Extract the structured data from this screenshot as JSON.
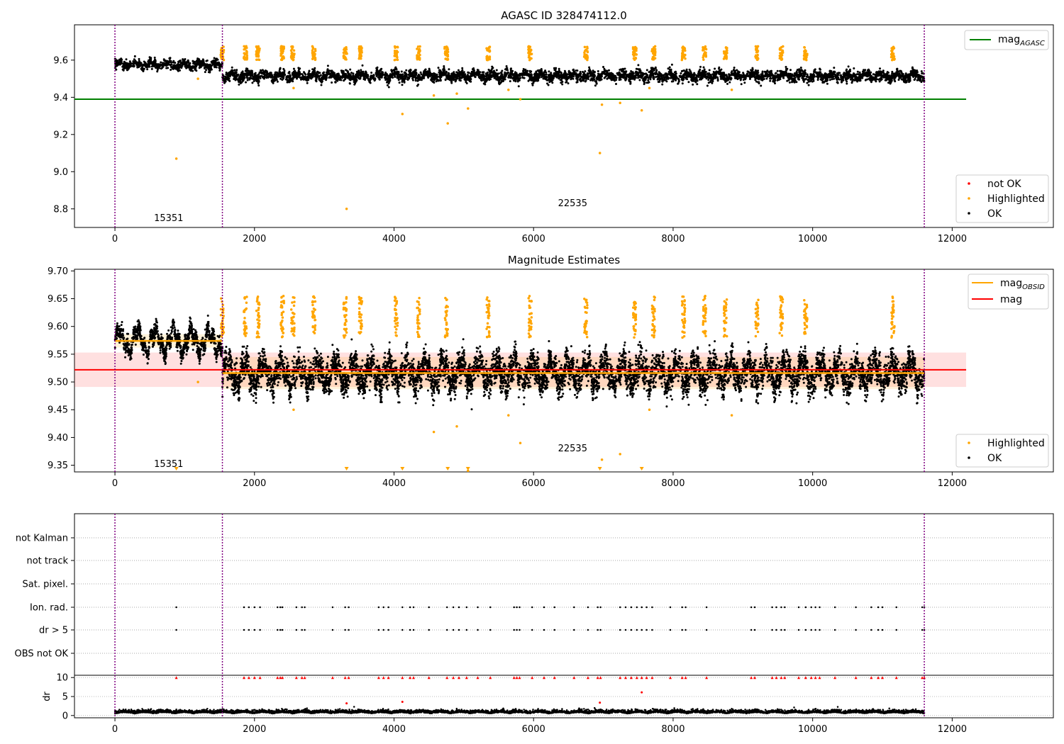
{
  "chart_data": [
    {
      "type": "scatter",
      "title": "AGASC ID 328474112.0",
      "xlim": [
        -580,
        13450
      ],
      "ylim": [
        8.7,
        9.79
      ],
      "x_ticks": [
        "0",
        "2000",
        "4000",
        "6000",
        "8000",
        "10000",
        "12000"
      ],
      "x_tick_values": [
        0,
        2000,
        4000,
        6000,
        8000,
        10000,
        12000
      ],
      "y_ticks": [
        "8.8",
        "9.0",
        "9.2",
        "9.4",
        "9.6"
      ],
      "y_tick_values": [
        8.8,
        9.0,
        9.2,
        9.4,
        9.6
      ],
      "reference_line": {
        "name": "mag_AGASC",
        "value": 9.39,
        "x_range": [
          -580,
          12200
        ],
        "color": "#008000"
      },
      "obsid_boundaries": [
        0,
        1540,
        11600
      ],
      "obsid_labels": [
        {
          "text": "15351",
          "x": 770,
          "y": 8.75
        },
        {
          "text": "22535",
          "x": 6560,
          "y": 8.83
        }
      ],
      "segments": [
        {
          "x_range": [
            0,
            1540
          ],
          "level": 9.575,
          "spread": 0.025
        },
        {
          "x_range": [
            1540,
            11600
          ],
          "level": 9.515,
          "spread": 0.03
        }
      ],
      "highlighted_clusters": [
        1540,
        1870,
        2050,
        2400,
        2550,
        2850,
        3300,
        3520,
        4030,
        4350,
        4750,
        5350,
        5950,
        6750,
        7450,
        7720,
        8150,
        8450,
        8750,
        9200,
        9550,
        9900,
        11150
      ],
      "highlighted_outliers": [
        {
          "x": 880,
          "y": 9.07
        },
        {
          "x": 1190,
          "y": 9.5
        },
        {
          "x": 2560,
          "y": 9.45
        },
        {
          "x": 3320,
          "y": 8.8
        },
        {
          "x": 4120,
          "y": 9.31
        },
        {
          "x": 4570,
          "y": 9.41
        },
        {
          "x": 4770,
          "y": 9.26
        },
        {
          "x": 4900,
          "y": 9.42
        },
        {
          "x": 5060,
          "y": 9.34
        },
        {
          "x": 5640,
          "y": 9.44
        },
        {
          "x": 5810,
          "y": 9.39
        },
        {
          "x": 6950,
          "y": 9.1
        },
        {
          "x": 6980,
          "y": 9.36
        },
        {
          "x": 7240,
          "y": 9.37
        },
        {
          "x": 7550,
          "y": 9.33
        },
        {
          "x": 7660,
          "y": 9.45
        },
        {
          "x": 8840,
          "y": 9.44
        }
      ],
      "legend_top": [
        {
          "label": "mag",
          "subscript": "AGASC",
          "type": "line",
          "color": "#008000"
        }
      ],
      "legend_bottom": [
        {
          "label": "not OK",
          "color": "#ff0000"
        },
        {
          "label": "Highlighted",
          "color": "#ffa500"
        },
        {
          "label": "OK",
          "color": "#000000"
        }
      ]
    },
    {
      "type": "scatter",
      "title": "Magnitude Estimates",
      "xlim": [
        -580,
        13450
      ],
      "ylim": [
        9.338,
        9.703
      ],
      "x_ticks": [
        "0",
        "2000",
        "4000",
        "6000",
        "8000",
        "10000",
        "12000"
      ],
      "x_tick_values": [
        0,
        2000,
        4000,
        6000,
        8000,
        10000,
        12000
      ],
      "y_ticks": [
        "9.35",
        "9.40",
        "9.45",
        "9.50",
        "9.55",
        "9.60",
        "9.65",
        "9.70"
      ],
      "y_tick_values": [
        9.35,
        9.4,
        9.45,
        9.5,
        9.55,
        9.6,
        9.65,
        9.7
      ],
      "mag_line": {
        "name": "mag",
        "value": 9.522,
        "x_range": [
          -580,
          12200
        ],
        "band": [
          9.491,
          9.553
        ],
        "color": "#ff0000"
      },
      "obsid_mag_lines": [
        {
          "x_range": [
            0,
            1540
          ],
          "value": 9.574,
          "band": [
            9.562,
            9.586
          ]
        },
        {
          "x_range": [
            1540,
            11600
          ],
          "value": 9.516,
          "band": [
            9.487,
            9.545
          ]
        }
      ],
      "obsid_boundaries": [
        0,
        1540,
        11600
      ],
      "obsid_labels": [
        {
          "text": "15351",
          "x": 770,
          "y": 9.352
        },
        {
          "text": "22535",
          "x": 6560,
          "y": 9.38
        }
      ],
      "below_range_markers": [
        880,
        3320,
        4120,
        4770,
        5060,
        6950,
        7550
      ],
      "legend_top": [
        {
          "label": "mag",
          "subscript": "OBSID",
          "type": "line",
          "color": "#ffa500"
        },
        {
          "label": "mag",
          "subscript": "",
          "type": "line",
          "color": "#ff0000"
        }
      ],
      "legend_bottom": [
        {
          "label": "Highlighted",
          "color": "#ffa500"
        },
        {
          "label": "OK",
          "color": "#000000"
        }
      ]
    },
    {
      "type": "scatter",
      "title": "",
      "xlim": [
        -580,
        13450
      ],
      "flag_rows": [
        "not Kalman",
        "not track",
        "Sat. pixel.",
        "Ion. rad.",
        "dr > 5",
        "OBS not OK"
      ],
      "flag_events_x": [
        880,
        1850,
        1920,
        2000,
        2080,
        2330,
        2370,
        2400,
        2600,
        2680,
        2720,
        3120,
        3300,
        3350,
        3780,
        3850,
        3920,
        4120,
        4230,
        4280,
        4500,
        4760,
        4850,
        4930,
        5040,
        5200,
        5380,
        5720,
        5760,
        5800,
        5980,
        6150,
        6300,
        6580,
        6780,
        6920,
        6960,
        7240,
        7320,
        7400,
        7480,
        7550,
        7620,
        7700,
        7960,
        8130,
        8180,
        8480,
        9120,
        9170,
        9420,
        9480,
        9550,
        9600,
        9800,
        9900,
        9980,
        10040,
        10100,
        10320,
        10620,
        10840,
        10940,
        11000,
        11200,
        11570,
        11600
      ],
      "obsid_boundaries": [
        0,
        1540,
        11600
      ],
      "dr_panel": {
        "ylabel": "dr",
        "y_ticks": [
          "0",
          "5",
          "10"
        ],
        "y_tick_values": [
          0,
          5,
          10
        ],
        "ylim": [
          -0.6,
          10.6
        ],
        "baseline": 0.5,
        "dr_outliers": [
          {
            "x": 880,
            "y": 1.6
          },
          {
            "x": 3320,
            "y": 3.2
          },
          {
            "x": 4120,
            "y": 3.6
          },
          {
            "x": 6950,
            "y": 3.4
          },
          {
            "x": 7550,
            "y": 6.1
          }
        ],
        "clipped_at": 10
      },
      "x_ticks": [
        "0",
        "2000",
        "4000",
        "6000",
        "8000",
        "10000",
        "12000"
      ],
      "x_tick_values": [
        0,
        2000,
        4000,
        6000,
        8000,
        10000,
        12000
      ]
    }
  ]
}
